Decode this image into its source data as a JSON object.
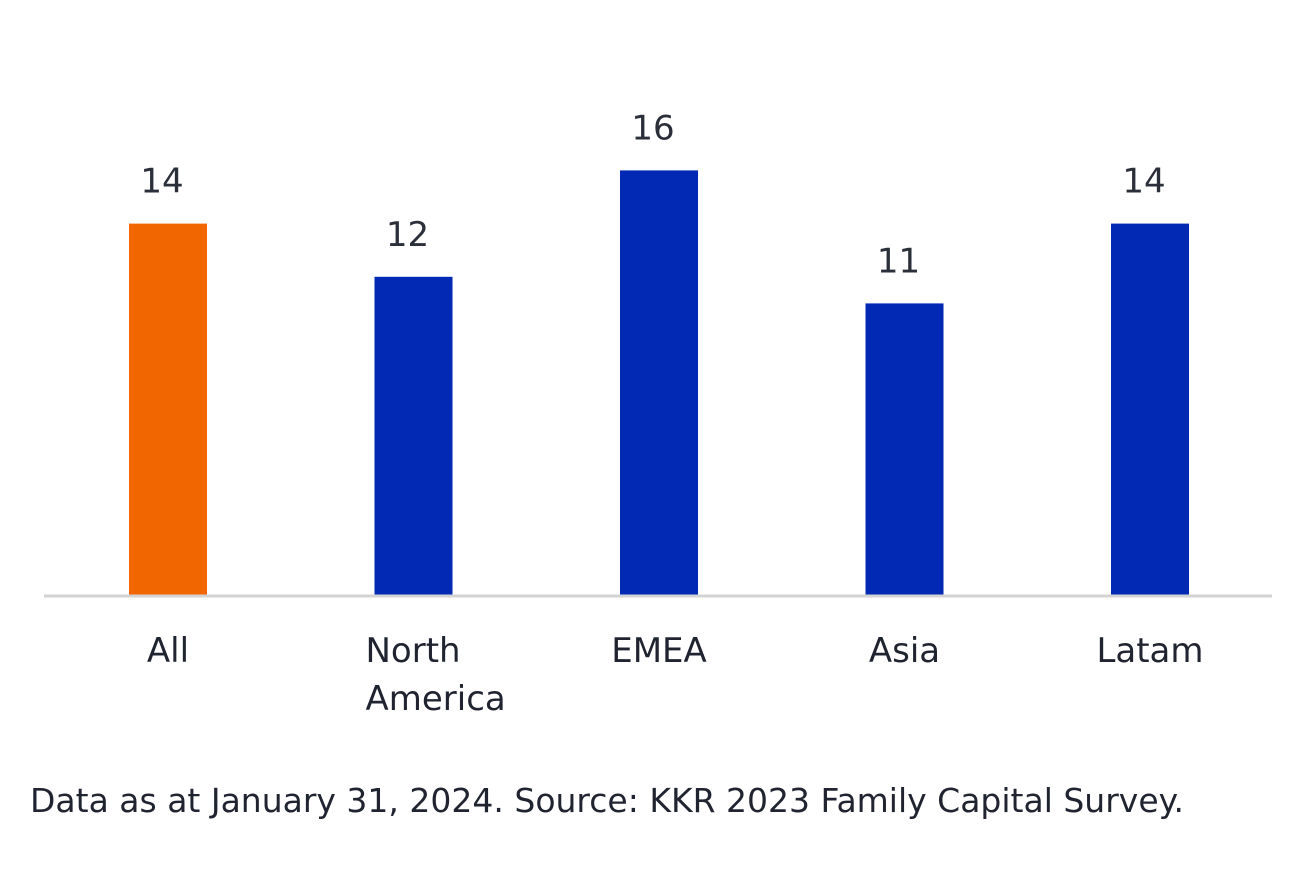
{
  "chart_data": {
    "type": "bar",
    "categories": [
      "All",
      "North America",
      "EMEA",
      "Asia",
      "Latam"
    ],
    "category_lines": [
      [
        "All"
      ],
      [
        "North",
        "America"
      ],
      [
        "EMEA"
      ],
      [
        "Asia"
      ],
      [
        "Latam"
      ]
    ],
    "values": [
      14,
      12,
      16,
      11,
      14
    ],
    "ylim": [
      0,
      16
    ],
    "grid": false,
    "legend": "none",
    "colors": {
      "highlight": "#F26600",
      "default": "#0229B3",
      "axis": "#D3D3D3"
    },
    "highlight_index": 0
  },
  "footer": {
    "source": "Data as at January 31, 2024. Source: KKR 2023 Family Capital Survey."
  }
}
